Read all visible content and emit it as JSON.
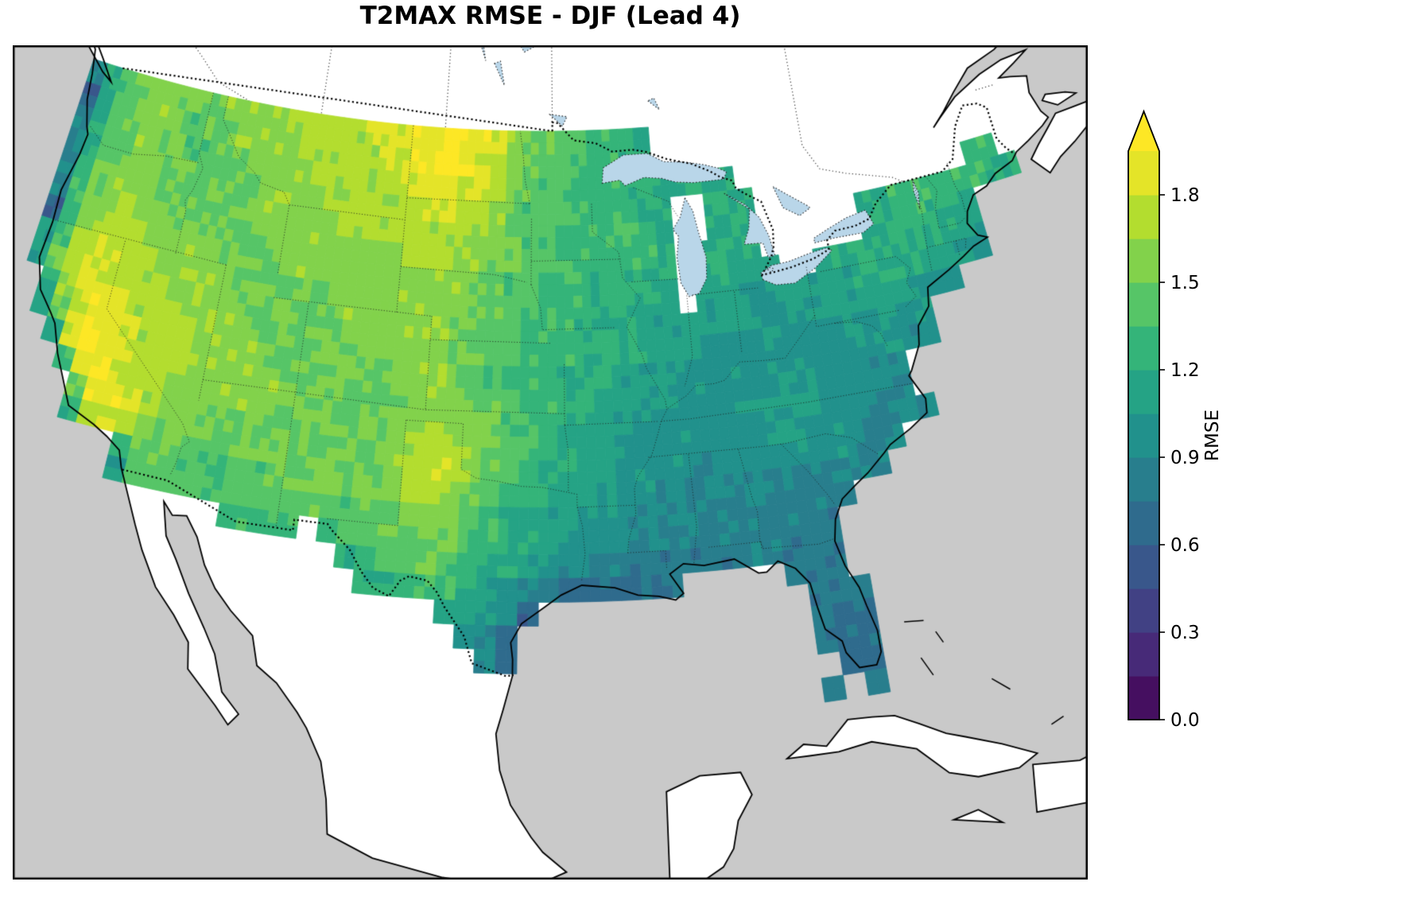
{
  "figure": {
    "title": "T2MAX RMSE - DJF (Lead 4)"
  },
  "colorbar": {
    "label": "RMSE",
    "ticks": [
      "0.0",
      "0.3",
      "0.6",
      "0.9",
      "1.2",
      "1.5",
      "1.8"
    ],
    "tick_values": [
      0,
      0.3,
      0.6,
      0.9,
      1.2,
      1.5,
      1.8
    ],
    "vmin": 0,
    "vmax": 1.95,
    "level_step": 0.15,
    "extend": "max",
    "colormap": "viridis",
    "colormap_stops": [
      "#440154",
      "#472d7b",
      "#3b528b",
      "#2c728e",
      "#21918c",
      "#28ae80",
      "#5ec962",
      "#addc30",
      "#fde725"
    ]
  },
  "map": {
    "region": "Continental United States",
    "ocean_color": "#c9c9c9",
    "land_color": "#ffffff",
    "lake_color": "#b9d6e9",
    "coastline_color": "#000000",
    "features": [
      "coastlines",
      "state-borders",
      "country-borders",
      "great-lakes"
    ]
  },
  "chart_data": {
    "type": "heatmap",
    "title": "T2MAX RMSE - DJF (Lead 4)",
    "variable": "T2MAX RMSE",
    "season": "DJF",
    "lead": 4,
    "units": "RMSE",
    "colormap": "viridis",
    "vmin": 0,
    "vmax": 1.95,
    "colorbar_label": "RMSE",
    "grid": {
      "lon_start": -125,
      "lon_end": -67,
      "lat_start": 49,
      "lat_end": 24,
      "cell_deg": 1,
      "ncols": 58,
      "nrows": 25,
      "row_order": "north-to-south",
      "encoding": "space-separated tokens west-to-east; token = RMSE x 10 (two digits); '--' = no data (outside CONUS); rows shorter than 58 tokens are padded with no-data on the east side",
      "rows": [
        "09 12 14 15 16 16 15 15 15 16 16 16 16 17 17 17 17 17 18 18 18 19 19 20 19 19 18 16 15 15 14 14 13 13 13 12",
        "06 11 14 15 16 16 15 14 15 15 16 16 16 16 17 17 17 17 17 18 18 19 20 20 19 18 17 16 15 14 14 13 13 13 12 12",
        "09 12 14 15 16 15 15 14 14 15 15 16 16 16 16 17 17 17 17 17 18 18 19 19 18 18 17 15 15 14 14 13 13 13 12 12 12 12 12 12 12",
        "09 12 14 15 16 16 15 15 14 15 15 15 16 16 16 16 17 17 17 17 17 17 18 18 17 17 16 15 14 14 14 13 13 13 13 12 12 -- -- 12 12 12 -- -- -- -- -- -- -- -- -- -- -- -- -- 13 13",
        "09 13 15 16 16 16 15 15 15 15 15 15 16 16 16 16 16 17 17 17 17 17 17 17 17 16 16 15 14 14 13 13 13 13 13 13 12 -- -- 12 12 12 -- -- -- -- -- -- 12 12 13 13 13 13 13 13 12 12",
        "09 13 15 16 17 16 16 15 15 15 15 15 15 16 16 16 16 16 16 16 16 17 17 17 16 16 15 15 14 14 13 13 13 13 13 13 12 -- 12 12 12 12 -- -- -- -- -- -- 12 12 13 13 12 12 12",
        "06 13 16 17 17 17 16 16 16 16 15 15 15 15 16 16 16 16 16 16 16 16 16 16 16 15 15 14 14 13 13 13 12 12 12 12 12 -- 12 12 11 11 11 -- -- 11 12 12 12 12 12 12 12 12 11",
        "11 14 17 18 18 17 17 16 16 16 16 15 15 15 15 15 15 16 16 16 16 16 16 16 16 15 15 14 14 13 13 13 12 12 12 12 11 -- 11 11 11 11 11 11 11 11 11 12 12 12 12 11 11 11 10",
        "11 15 18 18 18 17 17 17 16 16 16 16 15 15 15 15 15 15 16 16 16 16 16 16 15 15 14 14 13 13 13 12 12 12 12 11 11 11 11 11 11 10 10 11 11 11 11 11 11 11 10 10 10",
        "-- 12 16 18 19 18 17 17 17 16 16 16 16 15 15 15 15 15 15 16 16 16 16 15 15 15 14 14 13 13 13 12 12 12 12 11 11 11 10 10 10 10 10 10 10 10 11 10 10 10 10",
        "-- 11 15 18 19 19 18 17 17 17 16 16 16 16 15 15 15 15 15 15 15 16 16 16 15 15 14 13 13 13 12 12 12 11 11 11 11 10 10 10 10 10 10 10 10 10 10 10 10 09 09",
        "-- -- 12 18 20 19 18 17 17 17 16 16 16 16 16 15 15 15 15 15 15 15 16 16 16 15 15 14 13 13 12 12 11 11 11 11 10 10 10 10 10 10 11 11 10 10 10 09 09",
        "-- -- -- 13 19 20 18 17 17 16 16 16 16 16 16 15 15 15 15 15 15 16 16 17 16 16 15 14 14 13 12 12 11 11 10 10 10 10 10 10 11 11 11 11 10 10 09 09 09",
        "-- -- -- -- 15 19 19 18 17 16 16 15 15 15 15 15 15 15 15 15 15 16 17 18 17 16 15 14 14 13 12 11 11 10 10 10 10 10 10 10 10 11 11 10 10 10 09 09 09 09",
        "-- -- -- -- 12 17 18 17 16 15 15 15 14 15 15 15 15 15 15 15 15 16 17 18 18 16 15 14 13 12 12 11 11 10 10 10 10 09 10 10 10 10 10 10 10 09 09 09",
        "-- -- -- -- -- -- -- 13 15 15 14 14 14 14 14 15 15 15 15 15 15 16 17 17 17 15 14 13 13 12 11 11 10 10 10 09 09 09 09 09 09 09 09 09 09 09 09",
        "-- -- -- -- -- -- -- 11 14 14 14 14 13 14 14 14 15 15 14 14 15 15 16 16 16 14 13 12 12 11 11 10 10 09 09 09 09 09 09 09 09 09 09 09 08",
        "-- -- -- -- -- -- -- -- -- -- -- -- -- 13 13 13 13 -- 13 14 14 15 15 15 15 14 13 12 12 11 10 10 10 09 09 09 09 08 09 09 09 09 08 08",
        "-- -- -- -- -- -- -- -- -- -- -- -- -- -- -- -- -- -- -- 12 13 14 14 15 14 13 12 12 11 10 09 09 09 08 08 08 08 08 08 09 09 08 08 08",
        "-- -- -- -- -- -- -- -- -- -- -- -- -- -- -- -- -- -- -- -- 12 12 13 13 13 12 11 10 09 08 07 07 07 07 08 08 -- -- -- -- -- 08 08 08",
        "-- -- -- -- -- -- -- -- -- -- -- -- -- -- -- -- -- -- -- -- -- -- -- -- 11 11 10 09 06 -- -- -- -- -- -- -- -- -- -- -- -- -- 08 08 08",
        "-- -- -- -- -- -- -- -- -- -- -- -- -- -- -- -- -- -- -- -- -- -- -- -- -- 10 09 07 -- -- -- -- -- -- -- -- -- -- -- -- -- -- 08 07 07",
        "-- -- -- -- -- -- -- -- -- -- -- -- -- -- -- -- -- -- -- -- -- -- -- -- -- -- 09 07 -- -- -- -- -- -- -- -- -- -- -- -- -- -- 08 07 07",
        "-- -- -- -- -- -- -- -- -- -- -- -- -- -- -- -- -- -- -- -- -- -- -- -- -- -- -- -- -- -- -- -- -- -- -- -- -- -- -- -- -- -- -- 07 07",
        "-- -- -- -- -- -- -- -- -- -- -- -- -- -- -- -- -- -- -- -- -- -- -- -- -- -- -- -- -- -- -- -- -- -- -- -- -- -- -- -- -- -- 08 -- 08"
      ]
    }
  }
}
